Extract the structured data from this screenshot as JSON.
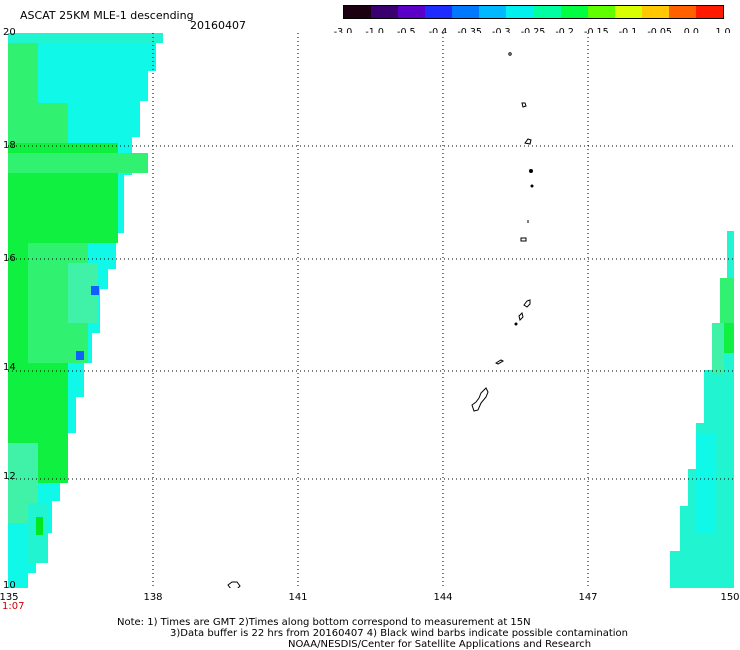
{
  "header": {
    "title": "ASCAT 25KM MLE-1 descending",
    "date": "20160407"
  },
  "colorbar": {
    "labels": [
      "-3.0",
      "-1.0",
      "-0.5",
      "-0.4",
      "-0.35",
      "-0.3",
      "-0.25",
      "-0.2",
      "-0.15",
      "-0.1",
      "-0.05",
      "0.0",
      "1.0"
    ],
    "colors": [
      "#1a0010",
      "#3a0070",
      "#5a00c8",
      "#1e2cff",
      "#0078ff",
      "#00b8ff",
      "#00f0f0",
      "#00ffa0",
      "#00ff40",
      "#60ff00",
      "#d8ff00",
      "#ffc800",
      "#ff6000",
      "#ff1a00"
    ]
  },
  "map": {
    "lat_labels": [
      "20",
      "18",
      "16",
      "14",
      "12",
      "10"
    ],
    "lon_labels": [
      "135",
      "138",
      "141",
      "144",
      "147",
      "150"
    ],
    "time_label": "1:07",
    "swath_colors": {
      "green": "#10f040",
      "greenish": "#30f270",
      "mint": "#40f2a8",
      "aqua": "#20f4d0",
      "cyan": "#10f8e8",
      "blue": "#1060ff",
      "brightgreen": "#00e820"
    }
  },
  "notes": {
    "line1": "Note: 1) Times are GMT 2)Times along bottom correspond to measurement at 15N",
    "line2": "3)Data buffer is 22 hrs from 20160407 4) Black wind barbs indicate possible contamination",
    "line3": "NOAA/NESDIS/Center for Satellite Applications and Research"
  }
}
